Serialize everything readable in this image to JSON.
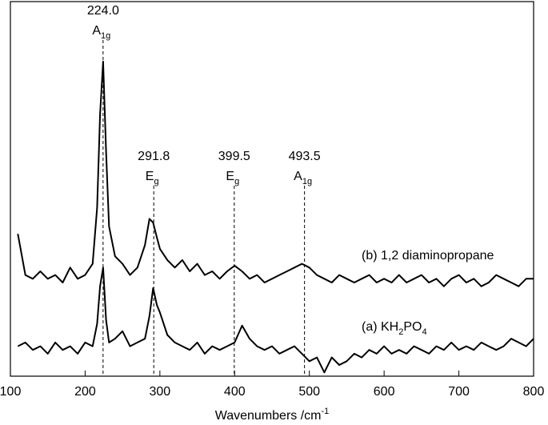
{
  "chart_data": {
    "type": "line",
    "xlabel": [
      "Wavenumbers /cm",
      "-1"
    ],
    "xlim": [
      100,
      800
    ],
    "xticks": [
      100,
      200,
      300,
      400,
      500,
      600,
      700,
      800
    ],
    "ylim": [
      0,
      100
    ],
    "x": [
      110,
      120,
      130,
      140,
      150,
      160,
      170,
      180,
      190,
      200,
      210,
      216,
      220,
      224,
      228,
      232,
      240,
      250,
      260,
      270,
      280,
      286,
      291,
      296,
      300,
      310,
      320,
      330,
      340,
      350,
      360,
      370,
      380,
      390,
      400,
      410,
      420,
      430,
      440,
      450,
      460,
      470,
      480,
      490,
      500,
      510,
      520,
      530,
      540,
      550,
      560,
      570,
      580,
      590,
      600,
      610,
      620,
      630,
      640,
      650,
      660,
      670,
      680,
      690,
      700,
      710,
      720,
      730,
      740,
      750,
      760,
      770,
      780,
      790,
      800
    ],
    "series": [
      {
        "name": [
          "(b) 1,2 diaminopropane"
        ],
        "color": "#000000",
        "values": [
          38,
          27,
          26,
          28,
          26,
          27,
          25,
          29,
          26,
          27,
          30,
          45,
          70,
          84,
          60,
          40,
          32,
          30,
          27,
          29,
          35,
          42,
          41,
          37,
          34,
          31,
          29,
          31,
          28,
          30,
          27,
          28,
          26,
          28,
          29.5,
          28,
          26,
          27,
          25,
          26,
          27,
          28,
          29,
          30,
          29,
          27,
          26,
          25,
          27,
          26,
          25,
          26,
          27,
          25,
          26,
          25,
          27,
          25,
          26,
          27,
          25,
          26,
          24,
          26,
          27,
          25,
          26,
          24,
          25,
          27,
          26,
          25,
          24,
          26,
          26
        ]
      },
      {
        "name": [
          "(a) KH",
          "2",
          "PO",
          "4"
        ],
        "color": "#000000",
        "values": [
          8,
          9,
          7,
          8,
          6,
          9,
          7,
          8,
          6,
          9,
          8,
          14,
          24,
          29,
          15,
          9,
          10,
          12,
          8,
          9,
          10,
          16,
          23.5,
          19,
          17,
          11,
          9,
          8,
          7,
          9,
          6,
          8,
          7,
          8,
          9,
          13.5,
          10,
          8,
          7,
          8,
          6,
          7,
          8,
          6,
          4,
          5,
          1,
          5,
          3,
          4,
          6,
          5,
          7,
          6,
          8,
          6,
          7,
          6,
          8,
          7,
          6,
          8,
          7,
          9,
          7,
          8,
          7,
          9,
          8,
          7,
          8,
          10,
          9,
          8,
          10
        ]
      }
    ],
    "annotations": [
      {
        "x": {
          "value": 224.0,
          "label": "224.0"
        },
        "mode": [
          "A",
          "1g"
        ]
      },
      {
        "x": {
          "value": 291.8,
          "label": "291.8"
        },
        "mode": [
          "E",
          "g"
        ]
      },
      {
        "x": {
          "value": 399.5,
          "label": "399.5"
        },
        "mode": [
          "E",
          "g"
        ]
      },
      {
        "x": {
          "value": 493.5,
          "label": "493.5"
        },
        "mode": [
          "A",
          "1g"
        ]
      }
    ]
  }
}
